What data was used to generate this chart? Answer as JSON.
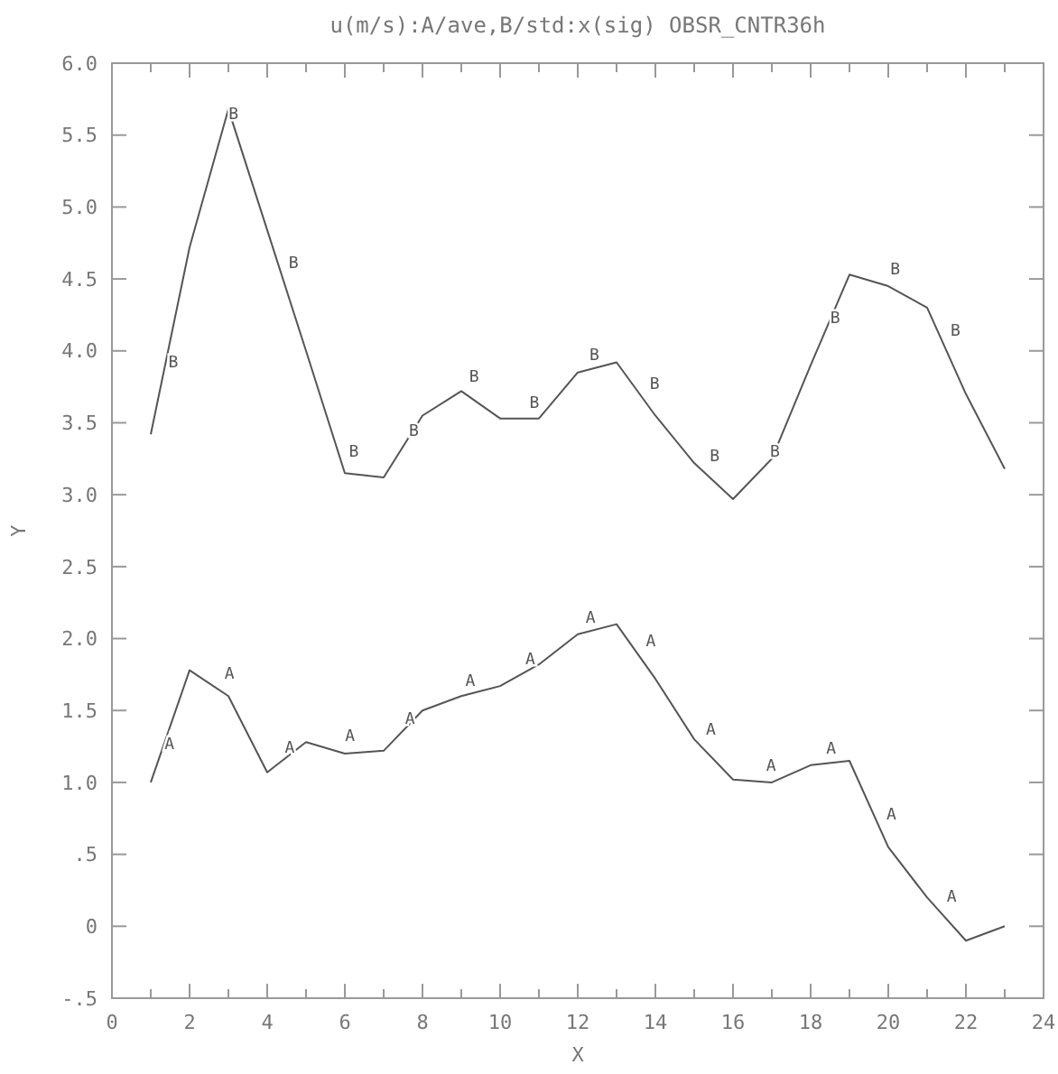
{
  "chart_data": {
    "type": "line",
    "title": "u(m/s):A/ave,B/std:x(sig) OBSR_CNTR36h",
    "xlabel": "X",
    "ylabel": "Y",
    "x": [
      1,
      2,
      3,
      4,
      5,
      6,
      7,
      8,
      9,
      10,
      11,
      12,
      13,
      14,
      15,
      16,
      17,
      18,
      19,
      20,
      21,
      22,
      23
    ],
    "series": [
      {
        "name": "A",
        "color": "#555555",
        "values": [
          1.0,
          1.78,
          1.6,
          1.07,
          1.28,
          1.2,
          1.22,
          1.5,
          1.6,
          1.67,
          1.82,
          2.03,
          2.1,
          1.72,
          1.3,
          1.02,
          1.0,
          1.12,
          1.15,
          0.55,
          0.2,
          -0.1,
          0.0
        ]
      },
      {
        "name": "B",
        "color": "#555555",
        "values": [
          3.42,
          4.72,
          5.68,
          4.84,
          4.0,
          3.15,
          3.12,
          3.55,
          3.72,
          3.53,
          3.53,
          3.85,
          3.92,
          3.55,
          3.22,
          2.97,
          3.25,
          3.9,
          4.53,
          4.45,
          4.3,
          3.7,
          3.18
        ]
      }
    ],
    "xlim": [
      0,
      24
    ],
    "ylim": [
      -0.5,
      6.0
    ],
    "xticks": [
      0,
      {
        "value": 1,
        "label": null
      },
      2,
      {
        "value": 3,
        "label": null
      },
      4,
      {
        "value": 5,
        "label": null
      },
      6,
      {
        "value": 7,
        "label": null
      },
      8,
      {
        "value": 9,
        "label": null
      },
      10,
      {
        "value": 11,
        "label": null
      },
      12,
      {
        "value": 13,
        "label": null
      },
      14,
      {
        "value": 15,
        "label": null
      },
      16,
      {
        "value": 17,
        "label": null
      },
      18,
      {
        "value": 19,
        "label": null
      },
      20,
      {
        "value": 21,
        "label": null
      },
      22,
      {
        "value": 23,
        "label": null
      },
      24
    ],
    "yticks": [
      {
        "value": -0.5,
        "label": "-.5"
      },
      {
        "value": 0,
        "label": "0"
      },
      {
        "value": 0.5,
        "label": ".5"
      },
      {
        "value": 1,
        "label": "1.0"
      },
      {
        "value": 1.5,
        "label": "1.5"
      },
      {
        "value": 2,
        "label": "2.0"
      },
      {
        "value": 2.5,
        "label": "2.5"
      },
      {
        "value": 3,
        "label": "3.0"
      },
      {
        "value": 3.5,
        "label": "3.5"
      },
      {
        "value": 4,
        "label": "4.0"
      },
      {
        "value": 4.5,
        "label": "4.5"
      },
      {
        "value": 5,
        "label": "5.0"
      },
      {
        "value": 5.5,
        "label": "5.5"
      },
      {
        "value": 6,
        "label": "6.0"
      }
    ],
    "grid": false,
    "legend": false,
    "marker": "none",
    "line_style": "solid"
  }
}
